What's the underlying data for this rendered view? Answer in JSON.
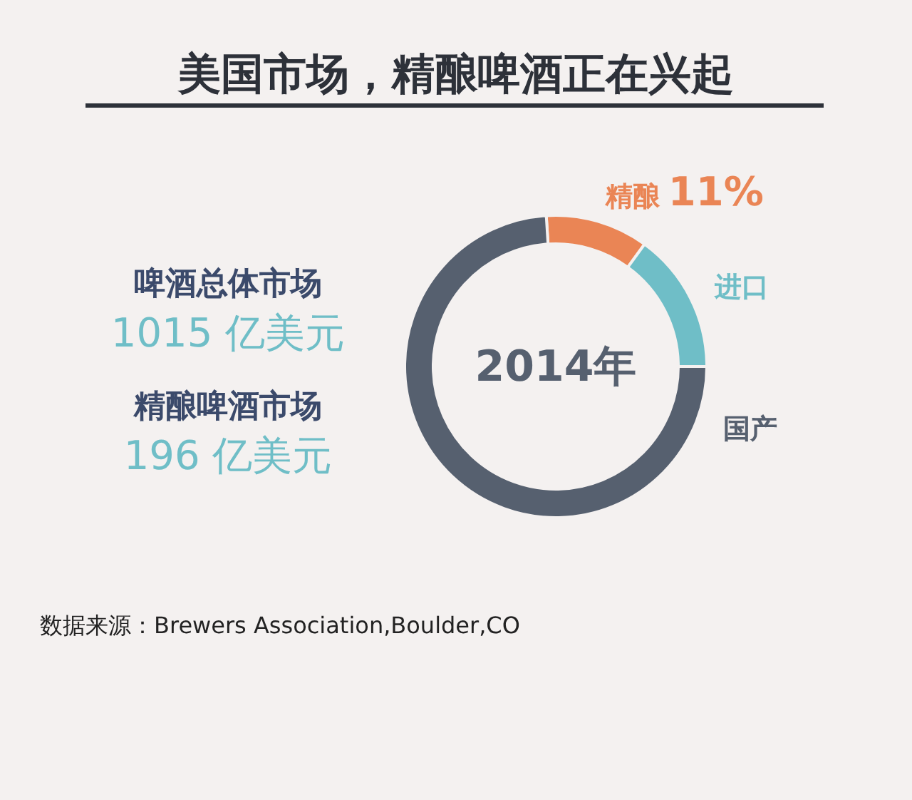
{
  "chart_data": {
    "type": "donut",
    "title": "美国市场，精酿啤酒正在兴起",
    "categories": [
      "精酿",
      "进口",
      "国产"
    ],
    "values": [
      11,
      15,
      74
    ],
    "colors": [
      "#ea8555",
      "#6fbec7",
      "#56606f"
    ],
    "value_labels": [
      "11%",
      null,
      null
    ],
    "annotations": [
      "2014年",
      "啤酒总体市场",
      "1015 亿美元",
      "精酿啤酒市场",
      "196 亿美元",
      "数据来源：Brewers Association,Boulder,CO"
    ]
  }
}
